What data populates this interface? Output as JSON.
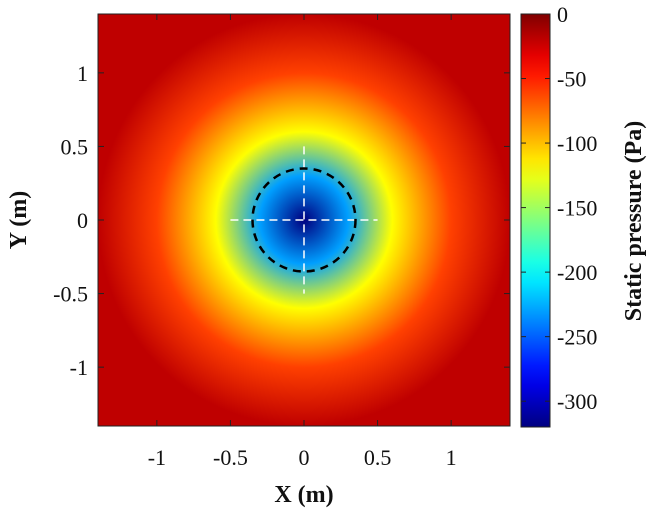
{
  "chart_data": {
    "type": "heatmap",
    "title": "",
    "xlabel": "X (m)",
    "ylabel": "Y (m)",
    "xlim": [
      -1.4,
      1.4
    ],
    "ylim": [
      -1.4,
      1.4
    ],
    "x_ticks": [
      -1,
      -0.5,
      0,
      0.5,
      1
    ],
    "x_tick_labels": [
      "-1",
      "-0.5",
      "0",
      "0.5",
      "1"
    ],
    "y_ticks": [
      1,
      0.5,
      0,
      -0.5,
      -1
    ],
    "y_tick_labels": [
      "1",
      "0.5",
      "0",
      "-0.5",
      "-1"
    ],
    "colorbar": {
      "label": "Static pressure (Pa)",
      "range": [
        -320,
        0
      ],
      "ticks": [
        0,
        -50,
        -100,
        -150,
        -200,
        -250,
        -300
      ],
      "tick_labels": [
        "0",
        "-50",
        "-100",
        "-150",
        "-200",
        "-250",
        "-300"
      ],
      "colormap": "jet"
    },
    "field": {
      "center": [
        0,
        0
      ],
      "min_value": -320,
      "edge_value": -20,
      "description_values": {
        "at_r_0.3": -230,
        "at_r_0.6": -120,
        "at_r_1.0": -60
      }
    },
    "annotations": {
      "dashed_circle": {
        "center": [
          0,
          0
        ],
        "radius": 0.35,
        "color": "#000000"
      },
      "crosshair": {
        "x_extent": [
          -0.5,
          0.5
        ],
        "y_extent": [
          -0.5,
          0.5
        ],
        "color": "#ffffff"
      }
    },
    "grid": false
  }
}
